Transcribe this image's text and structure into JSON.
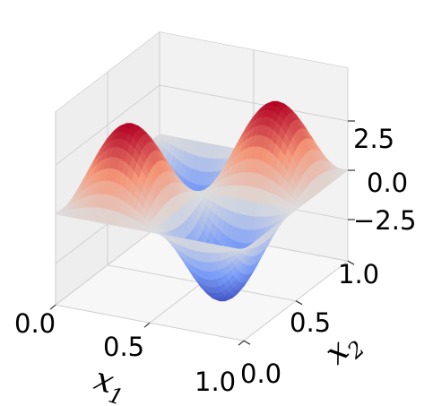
{
  "chart_data": {
    "type": "surface",
    "title": "",
    "function": "z = 4·sin(2πa)·sin(2πb) (sampled from rendered surface)",
    "xlabel": {
      "main": "x",
      "sub": "1"
    },
    "ylabel": {
      "main": "x",
      "sub": "2"
    },
    "zlabel": "",
    "xlim": [
      0.0,
      1.0
    ],
    "ylim": [
      0.0,
      1.0
    ],
    "zlim": [
      -4.0,
      4.0
    ],
    "x_ticks": [
      "0.0",
      "0.5",
      "1.0"
    ],
    "y_ticks": [
      "0.0",
      "0.5",
      "1.0"
    ],
    "z_ticks": [
      "−2.5",
      "0.0",
      "2.5"
    ],
    "grid": true,
    "colormap": "coolwarm",
    "colors": {
      "low": "#3b4cc0",
      "mid": "#dddddd",
      "high": "#b40426",
      "pane": "#f2f2f2",
      "grid": "#d0d0d0"
    },
    "peaks": [
      {
        "x": 0.25,
        "y": 0.25,
        "z": 4.0
      },
      {
        "x": 0.75,
        "y": 0.75,
        "z": 4.0
      },
      {
        "x": 0.25,
        "y": 0.75,
        "z": -4.0
      },
      {
        "x": 0.75,
        "y": 0.25,
        "z": -4.0
      }
    ]
  }
}
